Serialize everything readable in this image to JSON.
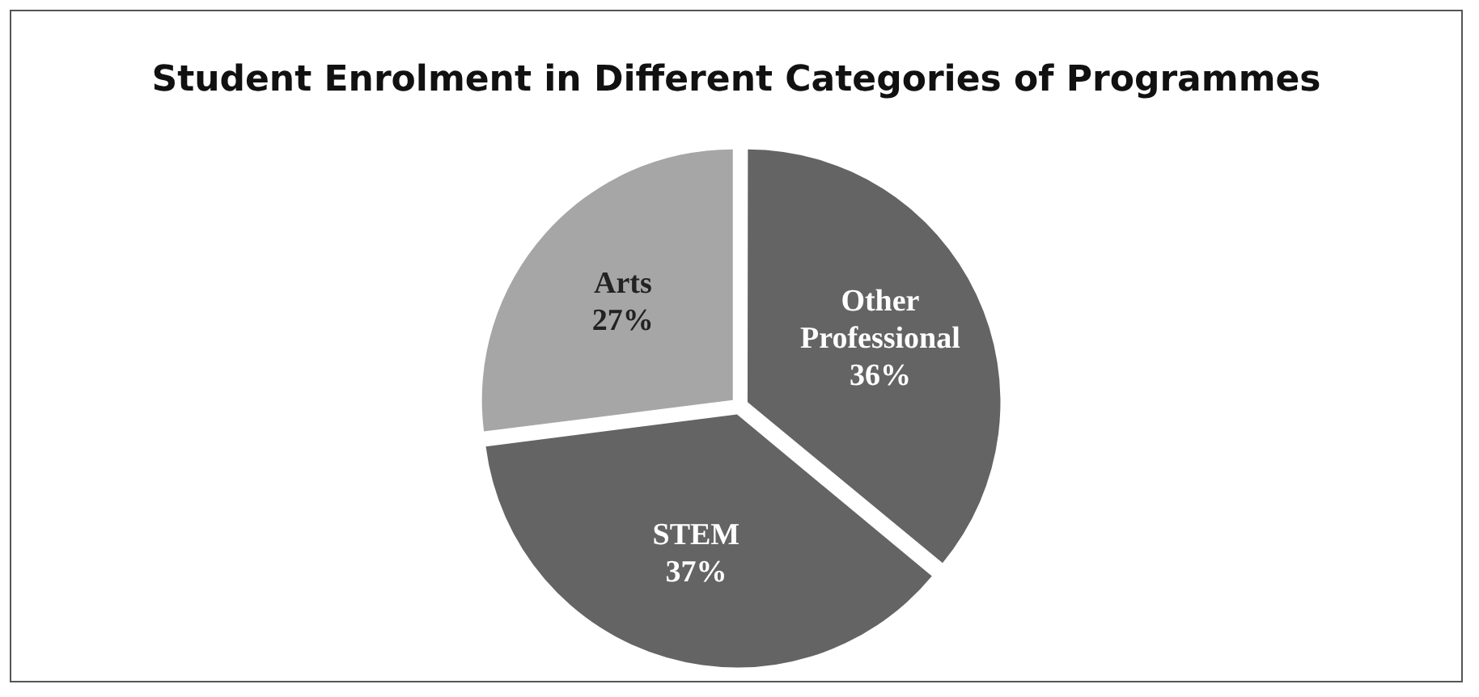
{
  "chart_data": {
    "type": "pie",
    "title": "Student Enrolment in Different Categories of Programmes",
    "categories": [
      "Other Professional",
      "STEM",
      "Arts"
    ],
    "values": [
      36,
      37,
      27
    ],
    "value_labels": [
      "36%",
      "37%",
      "27%"
    ],
    "colors": [
      "#646464",
      "#646464",
      "#a6a6a6"
    ],
    "legend": false
  }
}
